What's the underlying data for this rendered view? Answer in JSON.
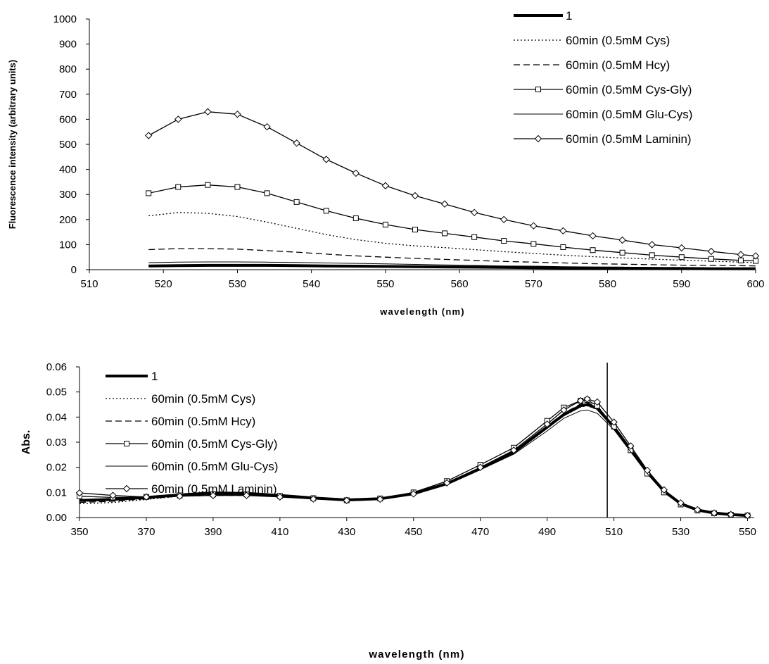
{
  "legend_markers": {
    "1": "none",
    "60min (0.5mM Cys)": "none",
    "60min (0.5mM Hcy)": "none",
    "60min (0.5mM Cys-Gly)": "square",
    "60min (0.5mM Glu-Cys)": "none",
    "60min (0.5mM Laminin)": "diamond"
  },
  "line_styles": {
    "1": "solid-thick",
    "60min (0.5mM Cys)": "dotted",
    "60min (0.5mM Hcy)": "dashed",
    "60min (0.5mM Cys-Gly)": "solid",
    "60min (0.5mM Glu-Cys)": "solid-thin",
    "60min (0.5mM Laminin)": "solid"
  },
  "colors": {
    "line": "#000000",
    "background": "#ffffff"
  },
  "chart_data": [
    {
      "type": "line",
      "title": "",
      "xlabel": "wavelength (nm)",
      "ylabel": "Fluorescence intensity (arbitrary units)",
      "xlim": [
        510,
        600
      ],
      "ylim": [
        0,
        1000
      ],
      "x_ticks": [
        "510",
        "520",
        "530",
        "540",
        "550",
        "560",
        "570",
        "580",
        "590",
        "600"
      ],
      "y_ticks": [
        "0",
        "100",
        "200",
        "300",
        "400",
        "500",
        "600",
        "700",
        "800",
        "900",
        "1000"
      ],
      "grid": false,
      "legend_position": "top-right",
      "x": [
        518,
        522,
        526,
        530,
        534,
        538,
        542,
        546,
        550,
        554,
        558,
        562,
        566,
        570,
        574,
        578,
        582,
        586,
        590,
        594,
        598,
        600
      ],
      "series": [
        {
          "name": "1",
          "values": [
            15,
            16,
            17,
            17,
            17,
            16,
            15,
            14,
            13,
            12,
            11,
            10,
            9,
            8,
            7,
            6,
            6,
            5,
            5,
            4,
            4,
            4
          ]
        },
        {
          "name": "60min (0.5mM Cys)",
          "values": [
            215,
            228,
            225,
            212,
            190,
            165,
            140,
            120,
            105,
            95,
            88,
            80,
            72,
            65,
            58,
            52,
            47,
            42,
            38,
            34,
            30,
            28
          ]
        },
        {
          "name": "60min (0.5mM Hcy)",
          "values": [
            80,
            84,
            84,
            82,
            76,
            70,
            62,
            55,
            50,
            45,
            41,
            37,
            33,
            30,
            27,
            24,
            22,
            20,
            18,
            17,
            16,
            15
          ]
        },
        {
          "name": "60min (0.5mM Cys-Gly)",
          "values": [
            305,
            330,
            338,
            330,
            305,
            270,
            235,
            205,
            180,
            160,
            145,
            130,
            115,
            103,
            90,
            78,
            68,
            58,
            50,
            43,
            37,
            35
          ]
        },
        {
          "name": "60min (0.5mM Glu-Cys)",
          "values": [
            28,
            30,
            31,
            31,
            30,
            29,
            27,
            25,
            23,
            21,
            19,
            17,
            15,
            14,
            12,
            11,
            10,
            9,
            8,
            7,
            6,
            6
          ]
        },
        {
          "name": "60min (0.5mM Laminin)",
          "values": [
            535,
            600,
            630,
            620,
            570,
            505,
            440,
            385,
            335,
            295,
            262,
            228,
            200,
            175,
            155,
            135,
            118,
            100,
            87,
            73,
            60,
            55
          ]
        }
      ]
    },
    {
      "type": "line",
      "title": "",
      "xlabel": "wavelength (nm)",
      "ylabel": "Abs.",
      "xlim": [
        350,
        552
      ],
      "ylim": [
        0,
        0.06
      ],
      "x_ticks": [
        "350",
        "370",
        "390",
        "410",
        "430",
        "450",
        "470",
        "490",
        "510",
        "530",
        "550"
      ],
      "y_ticks": [
        "0.00",
        "0.01",
        "0.02",
        "0.03",
        "0.04",
        "0.05",
        "0.06"
      ],
      "grid": false,
      "legend_position": "top-left",
      "reference_line_x": 508,
      "x": [
        350,
        360,
        370,
        380,
        390,
        400,
        410,
        420,
        430,
        440,
        450,
        460,
        470,
        480,
        490,
        495,
        500,
        502,
        505,
        510,
        515,
        520,
        525,
        530,
        535,
        540,
        545,
        550
      ],
      "series": [
        {
          "name": "1",
          "values": [
            0.0068,
            0.0072,
            0.008,
            0.009,
            0.0098,
            0.0096,
            0.0088,
            0.0078,
            0.007,
            0.0075,
            0.0095,
            0.0135,
            0.0195,
            0.026,
            0.036,
            0.041,
            0.0445,
            0.045,
            0.0435,
            0.036,
            0.027,
            0.018,
            0.0105,
            0.0055,
            0.003,
            0.0018,
            0.0012,
            0.0008
          ]
        },
        {
          "name": "60min (0.5mM Cys)",
          "values": [
            0.0055,
            0.006,
            0.0072,
            0.0085,
            0.009,
            0.009,
            0.0085,
            0.0076,
            0.0068,
            0.0072,
            0.0092,
            0.0132,
            0.019,
            0.0255,
            0.0355,
            0.0405,
            0.044,
            0.0445,
            0.043,
            0.0358,
            0.0268,
            0.0178,
            0.0103,
            0.0054,
            0.0029,
            0.0017,
            0.0011,
            0.0008
          ]
        },
        {
          "name": "60min (0.5mM Hcy)",
          "values": [
            0.006,
            0.0065,
            0.0075,
            0.0085,
            0.0088,
            0.0088,
            0.0083,
            0.0075,
            0.0068,
            0.0073,
            0.0094,
            0.0135,
            0.0196,
            0.0262,
            0.0365,
            0.0415,
            0.0452,
            0.0458,
            0.0442,
            0.0365,
            0.0272,
            0.0182,
            0.0106,
            0.0056,
            0.003,
            0.0018,
            0.0012,
            0.0008
          ]
        },
        {
          "name": "60min (0.5mM Cys-Gly)",
          "values": [
            0.0085,
            0.008,
            0.0082,
            0.0088,
            0.0092,
            0.0092,
            0.0086,
            0.0077,
            0.0069,
            0.0076,
            0.01,
            0.0145,
            0.021,
            0.0278,
            0.0385,
            0.0438,
            0.0465,
            0.0468,
            0.0445,
            0.0362,
            0.0268,
            0.0175,
            0.01,
            0.0052,
            0.0028,
            0.0017,
            0.0011,
            0.0008
          ]
        },
        {
          "name": "60min (0.5mM Glu-Cys)",
          "values": [
            0.0065,
            0.007,
            0.0078,
            0.0087,
            0.0092,
            0.0091,
            0.0085,
            0.0076,
            0.0069,
            0.0074,
            0.0093,
            0.0133,
            0.019,
            0.0252,
            0.0345,
            0.0395,
            0.0425,
            0.0428,
            0.0415,
            0.035,
            0.0262,
            0.0175,
            0.0102,
            0.0054,
            0.0029,
            0.0017,
            0.0011,
            0.0008
          ]
        },
        {
          "name": "60min (0.5mM Laminin)",
          "values": [
            0.0098,
            0.0088,
            0.0082,
            0.0085,
            0.0088,
            0.0088,
            0.0082,
            0.0074,
            0.0068,
            0.0073,
            0.0094,
            0.0138,
            0.02,
            0.0268,
            0.0372,
            0.0428,
            0.0465,
            0.0472,
            0.046,
            0.038,
            0.0285,
            0.0188,
            0.011,
            0.0058,
            0.0031,
            0.0018,
            0.0012,
            0.0008
          ]
        }
      ]
    }
  ]
}
